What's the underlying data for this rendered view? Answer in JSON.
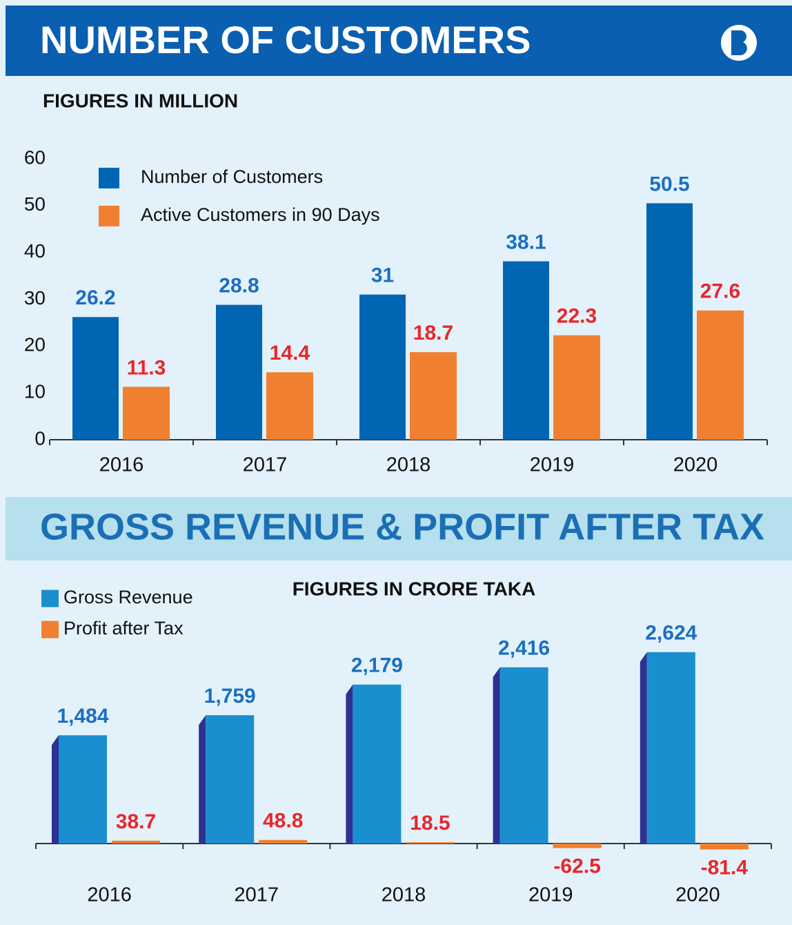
{
  "chart_data": [
    {
      "type": "bar",
      "title": "NUMBER OF CUSTOMERS",
      "subtitle": "FIGURES IN MILLION",
      "categories": [
        "2016",
        "2017",
        "2018",
        "2019",
        "2020"
      ],
      "series": [
        {
          "name": "Number of Customers",
          "color": "#0066b3",
          "label_color": "#1a6fc0",
          "values": [
            26.2,
            28.8,
            31,
            38.1,
            50.5
          ]
        },
        {
          "name": "Active Customers in 90 Days",
          "color": "#f08030",
          "label_color": "#e8262a",
          "values": [
            11.3,
            14.4,
            18.7,
            22.3,
            27.6
          ]
        }
      ],
      "ylim": [
        0,
        60
      ],
      "yticks": [
        0,
        10,
        20,
        30,
        40,
        50,
        60
      ],
      "legend": "upper left"
    },
    {
      "type": "bar",
      "title": "GROSS REVENUE & PROFIT AFTER TAX",
      "subtitle": "FIGURES IN CRORE TAKA",
      "categories": [
        "2016",
        "2017",
        "2018",
        "2019",
        "2020"
      ],
      "series": [
        {
          "name": "Gross Revenue",
          "color": "#1a8fd0",
          "label_color": "#1a6fc0",
          "values": [
            1484,
            1759,
            2179,
            2416,
            2624
          ],
          "value_labels": [
            "1,484",
            "1,759",
            "2,179",
            "2,416",
            "2,624"
          ]
        },
        {
          "name": "Profit after Tax",
          "color": "#f08030",
          "label_color": "#e8262a",
          "values": [
            38.7,
            48.8,
            18.5,
            -62.5,
            -81.4
          ]
        }
      ],
      "ylim": [
        -1000,
        3000
      ],
      "legend": "upper left"
    }
  ]
}
